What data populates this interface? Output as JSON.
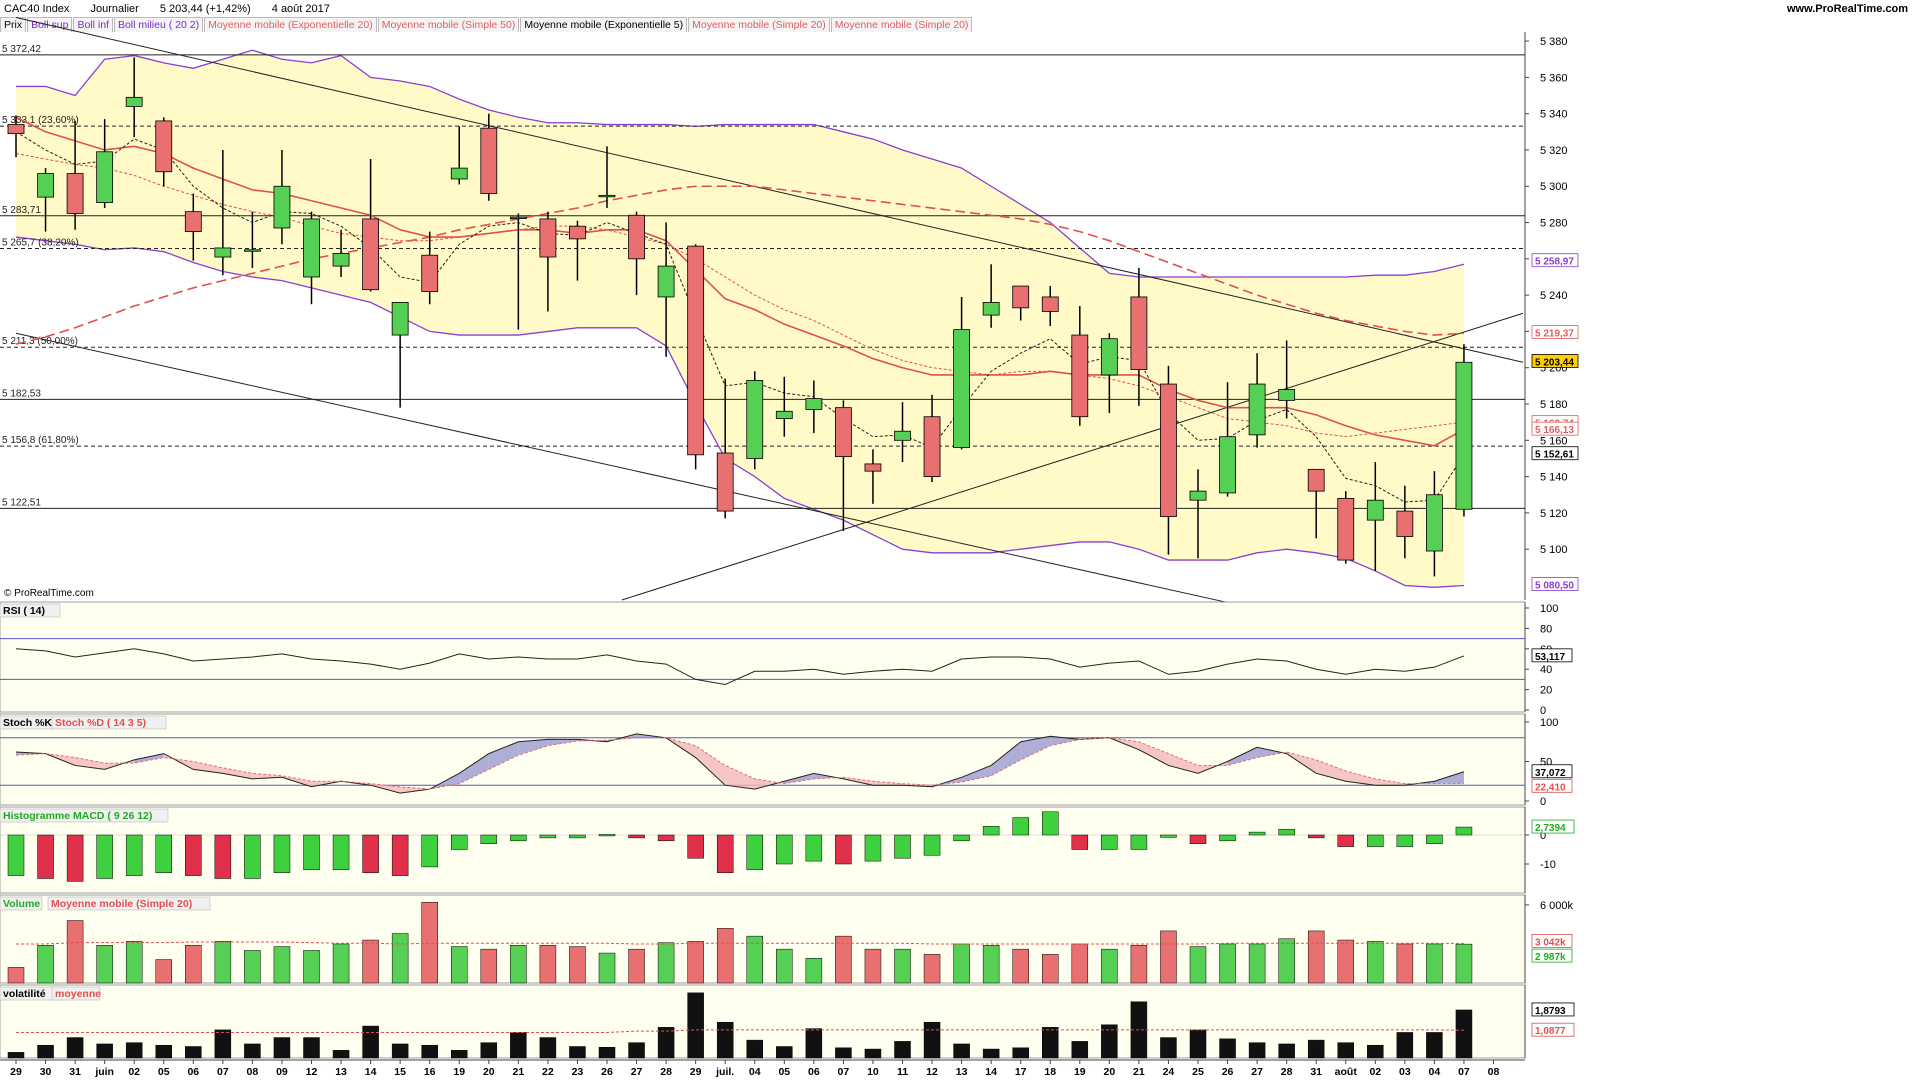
{
  "header": {
    "instrument": "CAC40 Index",
    "period": "Journalier",
    "last": "5 203,44 (+1,42%)",
    "date": "4 août 2017",
    "source": "www.ProRealTime.com"
  },
  "legend_price": [
    {
      "label": "Prix",
      "color": "#000000"
    },
    {
      "label": "Boll sup",
      "color": "#7b2ec8"
    },
    {
      "label": "Boll inf",
      "color": "#7b2ec8"
    },
    {
      "label": "Boll milieu ( 20 2)",
      "color": "#7b2ec8"
    },
    {
      "label": "Moyenne mobile (Exponentielle 20)",
      "color": "#e06060"
    },
    {
      "label": "Moyenne mobile (Simple 50)",
      "color": "#e06060"
    },
    {
      "label": "Moyenne mobile (Exponentielle 5)",
      "color": "#000000"
    },
    {
      "label": "Moyenne mobile (Simple 20)",
      "color": "#e06060"
    },
    {
      "label": "Moyenne mobile (Simple 20)",
      "color": "#e06060"
    }
  ],
  "watermark": "© ProRealTime.com",
  "colors": {
    "up": "#55d055",
    "down": "#e87070",
    "bollinger_fill": "#fffac8",
    "bollinger_line": "#8a3fd0",
    "panel_bg": "#fffff0"
  },
  "chart_data": {
    "type": "candlestick",
    "price_ticks": [
      "5 380",
      "5 360",
      "5 340",
      "5 320",
      "5 300",
      "5 280",
      "5 260",
      "5 240",
      "5 220",
      "5 200",
      "5 180",
      "5 160",
      "5 140",
      "5 120",
      "5 100"
    ],
    "ylim": [
      5072,
      5385
    ],
    "x_labels": [
      "29",
      "30",
      "31",
      "juin",
      "02",
      "05",
      "06",
      "07",
      "08",
      "09",
      "12",
      "13",
      "14",
      "15",
      "16",
      "19",
      "20",
      "21",
      "22",
      "23",
      "26",
      "27",
      "28",
      "29",
      "juil.",
      "04",
      "05",
      "06",
      "07",
      "10",
      "11",
      "12",
      "13",
      "14",
      "17",
      "18",
      "19",
      "20",
      "21",
      "24",
      "25",
      "26",
      "27",
      "28",
      "31",
      "août",
      "02",
      "03",
      "04",
      "07",
      "08"
    ],
    "candles": [
      {
        "o": 5334,
        "h": 5339,
        "l": 5316,
        "c": 5329
      },
      {
        "o": 5294,
        "h": 5310,
        "l": 5275,
        "c": 5307
      },
      {
        "o": 5307,
        "h": 5336,
        "l": 5276,
        "c": 5285
      },
      {
        "o": 5291,
        "h": 5337,
        "l": 5288,
        "c": 5319
      },
      {
        "o": 5344,
        "h": 5371,
        "l": 5327,
        "c": 5349
      },
      {
        "o": 5336,
        "h": 5338,
        "l": 5300,
        "c": 5308
      },
      {
        "o": 5286,
        "h": 5296,
        "l": 5259,
        "c": 5275
      },
      {
        "o": 5261,
        "h": 5320,
        "l": 5251,
        "c": 5266
      },
      {
        "o": 5265,
        "h": 5286,
        "l": 5255,
        "c": 5265
      },
      {
        "o": 5277,
        "h": 5320,
        "l": 5268,
        "c": 5300
      },
      {
        "o": 5250,
        "h": 5286,
        "l": 5235,
        "c": 5282
      },
      {
        "o": 5256,
        "h": 5276,
        "l": 5250,
        "c": 5263
      },
      {
        "o": 5282,
        "h": 5315,
        "l": 5242,
        "c": 5243
      },
      {
        "o": 5218,
        "h": 5235,
        "l": 5178,
        "c": 5236
      },
      {
        "o": 5262,
        "h": 5275,
        "l": 5235,
        "c": 5242
      },
      {
        "o": 5304,
        "h": 5333,
        "l": 5301,
        "c": 5310
      },
      {
        "o": 5332,
        "h": 5340,
        "l": 5292,
        "c": 5296
      },
      {
        "o": 5283,
        "h": 5285,
        "l": 5221,
        "c": 5283
      },
      {
        "o": 5282,
        "h": 5286,
        "l": 5231,
        "c": 5261
      },
      {
        "o": 5278,
        "h": 5281,
        "l": 5248,
        "c": 5271
      },
      {
        "o": 5295,
        "h": 5322,
        "l": 5288,
        "c": 5295
      },
      {
        "o": 5284,
        "h": 5286,
        "l": 5240,
        "c": 5260
      },
      {
        "o": 5239,
        "h": 5280,
        "l": 5206,
        "c": 5256
      },
      {
        "o": 5267,
        "h": 5268,
        "l": 5144,
        "c": 5152
      },
      {
        "o": 5153,
        "h": 5194,
        "l": 5117,
        "c": 5121
      },
      {
        "o": 5150,
        "h": 5198,
        "l": 5144,
        "c": 5193
      },
      {
        "o": 5172,
        "h": 5195,
        "l": 5162,
        "c": 5176
      },
      {
        "o": 5177,
        "h": 5193,
        "l": 5164,
        "c": 5183
      },
      {
        "o": 5178,
        "h": 5182,
        "l": 5110,
        "c": 5151
      },
      {
        "o": 5147,
        "h": 5155,
        "l": 5125,
        "c": 5143
      },
      {
        "o": 5160,
        "h": 5181,
        "l": 5148,
        "c": 5165
      },
      {
        "o": 5173,
        "h": 5185,
        "l": 5137,
        "c": 5140
      },
      {
        "o": 5156,
        "h": 5239,
        "l": 5155,
        "c": 5221
      },
      {
        "o": 5229,
        "h": 5257,
        "l": 5222,
        "c": 5236
      },
      {
        "o": 5245,
        "h": 5245,
        "l": 5226,
        "c": 5233
      },
      {
        "o": 5239,
        "h": 5245,
        "l": 5223,
        "c": 5231
      },
      {
        "o": 5218,
        "h": 5234,
        "l": 5168,
        "c": 5173
      },
      {
        "o": 5196,
        "h": 5219,
        "l": 5175,
        "c": 5216
      },
      {
        "o": 5239,
        "h": 5255,
        "l": 5179,
        "c": 5199
      },
      {
        "o": 5191,
        "h": 5201,
        "l": 5097,
        "c": 5118
      },
      {
        "o": 5127,
        "h": 5144,
        "l": 5095,
        "c": 5132
      },
      {
        "o": 5131,
        "h": 5192,
        "l": 5129,
        "c": 5162
      },
      {
        "o": 5163,
        "h": 5208,
        "l": 5156,
        "c": 5191
      },
      {
        "o": 5182,
        "h": 5215,
        "l": 5172,
        "c": 5188
      },
      {
        "o": 5144,
        "h": 5144,
        "l": 5106,
        "c": 5132
      },
      {
        "o": 5128,
        "h": 5132,
        "l": 5092,
        "c": 5094
      },
      {
        "o": 5116,
        "h": 5148,
        "l": 5088,
        "c": 5127
      },
      {
        "o": 5121,
        "h": 5135,
        "l": 5095,
        "c": 5107
      },
      {
        "o": 5099,
        "h": 5143,
        "l": 5085,
        "c": 5130
      },
      {
        "o": 5122,
        "h": 5213,
        "l": 5118,
        "c": 5203
      }
    ],
    "boll_sup": [
      5355,
      5355,
      5350,
      5370,
      5372,
      5368,
      5365,
      5370,
      5375,
      5370,
      5368,
      5372,
      5360,
      5358,
      5355,
      5348,
      5342,
      5338,
      5335,
      5335,
      5334,
      5334,
      5334,
      5333,
      5334,
      5334,
      5334,
      5334,
      5330,
      5326,
      5320,
      5315,
      5310,
      5300,
      5290,
      5280,
      5266,
      5252,
      5250,
      5250,
      5250,
      5250,
      5250,
      5250,
      5250,
      5250,
      5251,
      5251,
      5253,
      5257
    ],
    "boll_inf": [
      5272,
      5270,
      5268,
      5265,
      5266,
      5264,
      5258,
      5253,
      5250,
      5248,
      5244,
      5240,
      5236,
      5228,
      5220,
      5218,
      5218,
      5218,
      5220,
      5222,
      5222,
      5222,
      5212,
      5180,
      5150,
      5140,
      5128,
      5122,
      5116,
      5108,
      5100,
      5098,
      5098,
      5098,
      5100,
      5102,
      5104,
      5104,
      5100,
      5094,
      5094,
      5094,
      5098,
      5100,
      5098,
      5095,
      5088,
      5080,
      5079,
      5080
    ],
    "sma50": [
      5213,
      5217,
      5222,
      5228,
      5234,
      5239,
      5244,
      5248,
      5252,
      5256,
      5260,
      5263,
      5266,
      5269,
      5272,
      5276,
      5279,
      5282,
      5285,
      5288,
      5292,
      5295,
      5298,
      5300,
      5300,
      5300,
      5298,
      5296,
      5294,
      5292,
      5290,
      5288,
      5286,
      5284,
      5282,
      5279,
      5275,
      5270,
      5264,
      5258,
      5252,
      5246,
      5240,
      5235,
      5230,
      5226,
      5223,
      5220,
      5218,
      5219
    ],
    "ema20": [
      5338,
      5330,
      5325,
      5320,
      5322,
      5318,
      5310,
      5304,
      5298,
      5296,
      5292,
      5288,
      5284,
      5276,
      5272,
      5272,
      5274,
      5276,
      5276,
      5274,
      5276,
      5276,
      5270,
      5254,
      5238,
      5232,
      5224,
      5218,
      5212,
      5205,
      5200,
      5196,
      5196,
      5196,
      5196,
      5198,
      5196,
      5196,
      5196,
      5188,
      5182,
      5178,
      5178,
      5178,
      5174,
      5168,
      5163,
      5160,
      5157,
      5166
    ],
    "sma20": [
      5318,
      5315,
      5312,
      5310,
      5306,
      5300,
      5295,
      5290,
      5286,
      5283,
      5278,
      5274,
      5272,
      5270,
      5270,
      5272,
      5274,
      5276,
      5278,
      5278,
      5276,
      5272,
      5268,
      5260,
      5250,
      5240,
      5232,
      5226,
      5218,
      5210,
      5204,
      5200,
      5198,
      5196,
      5198,
      5198,
      5196,
      5194,
      5190,
      5184,
      5178,
      5172,
      5170,
      5168,
      5164,
      5162,
      5164,
      5166,
      5168,
      5170
    ],
    "ema5": [
      5330,
      5320,
      5312,
      5314,
      5326,
      5320,
      5300,
      5288,
      5280,
      5286,
      5285,
      5278,
      5266,
      5250,
      5247,
      5268,
      5278,
      5280,
      5274,
      5273,
      5280,
      5274,
      5268,
      5228,
      5190,
      5192,
      5186,
      5184,
      5172,
      5162,
      5163,
      5156,
      5178,
      5198,
      5208,
      5216,
      5202,
      5206,
      5204,
      5175,
      5160,
      5161,
      5171,
      5177,
      5162,
      5139,
      5135,
      5126,
      5127,
      5152
    ],
    "levels": [
      {
        "label": "5 372,42",
        "value": 5372.42,
        "style": "solid"
      },
      {
        "label": "5 333,1 (23,60%)",
        "value": 5333.1,
        "style": "dashed"
      },
      {
        "label": "5 283,71",
        "value": 5283.71,
        "style": "solid"
      },
      {
        "label": "5 265,7 (38,20%)",
        "value": 5265.7,
        "style": "dashed"
      },
      {
        "label": "5 211,3 (50,00%)",
        "value": 5211.3,
        "style": "dashed"
      },
      {
        "label": "5 182,53",
        "value": 5182.53,
        "style": "solid"
      },
      {
        "label": "5 156,8 (61,80%)",
        "value": 5156.8,
        "style": "dashed"
      },
      {
        "label": "5 122,51",
        "value": 5122.51,
        "style": "solid"
      }
    ],
    "trendlines": [
      {
        "i0": 0,
        "v0": 5393,
        "i1": 51,
        "v1": 5203
      },
      {
        "i0": 0,
        "v0": 5219,
        "i1": 42,
        "v1": 5067
      },
      {
        "i0": 20.5,
        "v0": 5072,
        "i1": 51,
        "v1": 5230
      }
    ],
    "value_tags": [
      {
        "label": "5 258,97",
        "value": 5258.97,
        "color": "#8a3fd0",
        "bg": "#ffffff"
      },
      {
        "label": "5 219,37",
        "value": 5219.37,
        "color": "#e06060",
        "bg": "#ffffff"
      },
      {
        "label": "5 203,44",
        "value": 5203.44,
        "color": "#000000",
        "bg": "#ffd000"
      },
      {
        "label": "5 169,74",
        "value": 5169.74,
        "color": "#e06060",
        "bg": "#ffffff"
      },
      {
        "label": "5 166,13",
        "value": 5166.13,
        "color": "#e06060",
        "bg": "#ffffff"
      },
      {
        "label": "5 152,61",
        "value": 5152.61,
        "color": "#000000",
        "bg": "#ffffff"
      },
      {
        "label": "5 080,50",
        "value": 5080.5,
        "color": "#8a3fd0",
        "bg": "#ffffff"
      }
    ],
    "rsi": {
      "label": "RSI ( 14)",
      "ticks": [
        "100",
        "80",
        "60",
        "40",
        "20",
        "0"
      ],
      "tag": "53,117",
      "values": [
        60,
        58,
        52,
        56,
        60,
        55,
        48,
        50,
        52,
        55,
        50,
        48,
        45,
        40,
        46,
        55,
        50,
        52,
        50,
        50,
        54,
        48,
        45,
        30,
        25,
        38,
        38,
        40,
        35,
        38,
        40,
        38,
        50,
        52,
        52,
        50,
        42,
        46,
        48,
        35,
        38,
        45,
        50,
        48,
        40,
        35,
        40,
        38,
        42,
        53
      ]
    },
    "stoch": {
      "label_k": "Stoch %K",
      "label_d": "Stoch %D ( 14 3 5)",
      "ticks": [
        "100",
        "50",
        "0"
      ],
      "tag_k": "37,072",
      "tag_d": "22,410",
      "k": [
        62,
        60,
        45,
        40,
        52,
        60,
        40,
        35,
        28,
        30,
        18,
        25,
        20,
        10,
        15,
        35,
        60,
        75,
        78,
        78,
        75,
        85,
        80,
        55,
        20,
        15,
        25,
        35,
        28,
        20,
        20,
        18,
        30,
        45,
        75,
        82,
        78,
        80,
        65,
        45,
        35,
        50,
        68,
        60,
        35,
        25,
        20,
        20,
        25,
        37
      ],
      "d": [
        58,
        60,
        55,
        48,
        48,
        55,
        50,
        42,
        35,
        32,
        25,
        25,
        22,
        18,
        15,
        22,
        40,
        58,
        70,
        76,
        77,
        80,
        80,
        70,
        45,
        28,
        22,
        28,
        30,
        25,
        22,
        20,
        24,
        32,
        52,
        70,
        78,
        80,
        75,
        60,
        45,
        45,
        55,
        62,
        52,
        38,
        28,
        22,
        22,
        22
      ]
    },
    "macd": {
      "label": "Histogramme MACD ( 9 26 12)",
      "ticks": [
        "0",
        "-10"
      ],
      "tag": "2,7394",
      "values": [
        -14,
        -15,
        -16,
        -15,
        -14,
        -13,
        -14,
        -15,
        -15,
        -13,
        -12,
        -12,
        -13,
        -14,
        -11,
        -5,
        -3,
        -2,
        -1,
        -1,
        0.2,
        -1,
        -2,
        -8,
        -13,
        -12,
        -10,
        -9,
        -10,
        -9,
        -8,
        -7,
        -2,
        3,
        6,
        8,
        -5,
        -5,
        -5,
        -0.8,
        -3,
        -2,
        1,
        2,
        -1,
        -4,
        -4,
        -4,
        -3,
        2.74
      ]
    },
    "volume": {
      "label": "Volume",
      "label_ma": "Moyenne mobile (Simple 20)",
      "ticks": [
        "6 000k"
      ],
      "tag_ma": "3 042k",
      "tag_vol": "2 987k",
      "values": [
        1200,
        2900,
        4800,
        2900,
        3200,
        1800,
        2900,
        3200,
        2500,
        2800,
        2500,
        3000,
        3300,
        3800,
        6200,
        2800,
        2600,
        2900,
        2900,
        2800,
        2300,
        2600,
        3100,
        3200,
        4200,
        3600,
        2600,
        1900,
        3600,
        2600,
        2600,
        2200,
        3000,
        2900,
        2600,
        2200,
        3000,
        2600,
        2900,
        4000,
        2800,
        3000,
        3000,
        3400,
        4000,
        3300,
        3200,
        3000,
        3000,
        2987
      ],
      "ma": [
        3000,
        3000,
        3100,
        3100,
        3100,
        3100,
        3150,
        3150,
        3150,
        3150,
        3100,
        3050,
        3050,
        3000,
        3050,
        3050,
        3050,
        3050,
        3050,
        3050,
        3050,
        3000,
        3000,
        3050,
        3050,
        3050,
        3050,
        3050,
        3050,
        3050,
        3050,
        3000,
        3000,
        3000,
        3000,
        3000,
        3000,
        3000,
        3000,
        3000,
        3000,
        3050,
        3050,
        3050,
        3050,
        3050,
        3050,
        3050,
        3050,
        3042
      ]
    },
    "volatility": {
      "label": "volatilité",
      "label_ma": "moyenne",
      "tag": "1,8793",
      "tag_ma": "1,0877",
      "values": [
        0.22,
        0.5,
        0.8,
        0.55,
        0.6,
        0.5,
        0.45,
        1.1,
        0.55,
        0.8,
        0.8,
        0.3,
        1.25,
        0.55,
        0.5,
        0.3,
        0.6,
        1.0,
        0.8,
        0.45,
        0.42,
        0.6,
        1.2,
        2.55,
        1.4,
        0.7,
        0.45,
        1.15,
        0.4,
        0.35,
        0.65,
        1.4,
        0.55,
        0.35,
        0.4,
        1.2,
        0.65,
        1.3,
        2.2,
        0.8,
        1.1,
        0.75,
        0.6,
        0.55,
        0.7,
        0.6,
        0.5,
        1.0,
        1.0,
        1.88
      ],
      "ma": [
        1.0,
        1.0,
        1.0,
        1.0,
        1.0,
        1.0,
        1.0,
        1.0,
        1.0,
        1.0,
        1.0,
        1.0,
        1.0,
        1.0,
        1.0,
        1.0,
        1.0,
        1.0,
        1.0,
        1.0,
        1.0,
        1.05,
        1.05,
        1.1,
        1.1,
        1.1,
        1.1,
        1.1,
        1.1,
        1.1,
        1.1,
        1.1,
        1.1,
        1.1,
        1.1,
        1.1,
        1.1,
        1.1,
        1.1,
        1.1,
        1.1,
        1.1,
        1.1,
        1.1,
        1.1,
        1.1,
        1.1,
        1.1,
        1.1,
        1.0877
      ]
    }
  }
}
